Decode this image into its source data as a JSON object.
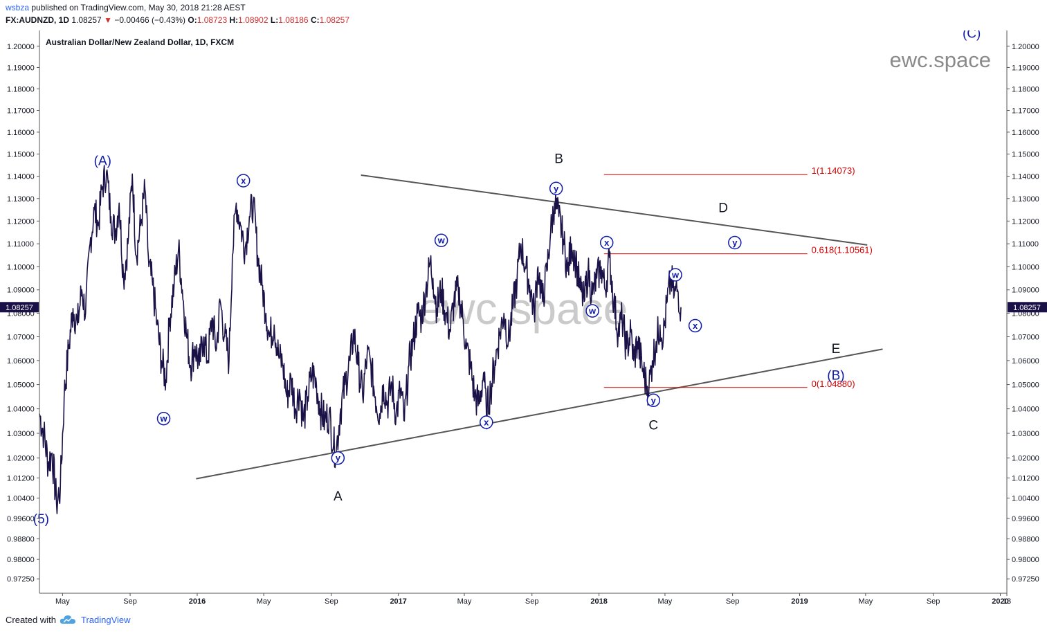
{
  "header": {
    "user": "wsbza",
    "published": "published on TradingView.com, May 30, 2018 21:28 AEST",
    "symbol": "FX:AUDNZD, 1D",
    "last": "1.08257",
    "change": "−0.00466 (−0.43%)",
    "open_label": "O:",
    "open": "1.08723",
    "high_label": "H:",
    "high": "1.08902",
    "low_label": "L:",
    "low": "1.08186",
    "close_label": "C:",
    "close": "1.08257",
    "colors": {
      "down": "#d32f2f",
      "user": "#2962ff"
    }
  },
  "footer": {
    "created_with": "Created with",
    "brand": "TradingView"
  },
  "watermark": {
    "corner": "ewc.space",
    "center": "ewc.space"
  },
  "chart_data": {
    "type": "line",
    "title": "Australian Dollar/New Zealand Dollar, 1D, FXCM",
    "xlabel": "",
    "ylabel": "",
    "series_color": "#1a1147",
    "y_scale": "log",
    "ylim": [
      0.967,
      1.2075
    ],
    "xlim": [
      "2015-03-20",
      "2020-01-13"
    ],
    "last_price": "1.08257",
    "y_ticks": [
      "1.20000",
      "1.19000",
      "1.18000",
      "1.17000",
      "1.16000",
      "1.15000",
      "1.14000",
      "1.13000",
      "1.12000",
      "1.11000",
      "1.10000",
      "1.09000",
      "1.08000",
      "1.07000",
      "1.06000",
      "1.05000",
      "1.04000",
      "1.03000",
      "1.02000",
      "1.01200",
      "1.00400",
      "0.99600",
      "0.98800",
      "0.98000",
      "0.97250"
    ],
    "x_ticks": [
      {
        "date": "2015-05-01",
        "label": "May"
      },
      {
        "date": "2015-09-01",
        "label": "Sep"
      },
      {
        "date": "2016-01-01",
        "label": "2016",
        "bold": true
      },
      {
        "date": "2016-05-01",
        "label": "May"
      },
      {
        "date": "2016-09-01",
        "label": "Sep"
      },
      {
        "date": "2017-01-01",
        "label": "2017",
        "bold": true
      },
      {
        "date": "2017-05-01",
        "label": "May"
      },
      {
        "date": "2017-09-01",
        "label": "Sep"
      },
      {
        "date": "2018-01-01",
        "label": "2018",
        "bold": true
      },
      {
        "date": "2018-05-01",
        "label": "May"
      },
      {
        "date": "2018-09-01",
        "label": "Sep"
      },
      {
        "date": "2019-01-01",
        "label": "2019",
        "bold": true
      },
      {
        "date": "2019-05-01",
        "label": "May"
      },
      {
        "date": "2019-09-01",
        "label": "Sep"
      },
      {
        "date": "2020-01-01",
        "label": "2020",
        "bold": true
      },
      {
        "date": "2020-01-13",
        "label": "13"
      }
    ],
    "price_path": [
      [
        "2015-03-20",
        1.038
      ],
      [
        "2015-03-28",
        1.03
      ],
      [
        "2015-04-05",
        1.018
      ],
      [
        "2015-04-12",
        1.022
      ],
      [
        "2015-04-20",
        1.002
      ],
      [
        "2015-04-27",
        1.008
      ],
      [
        "2015-05-04",
        1.045
      ],
      [
        "2015-05-12",
        1.065
      ],
      [
        "2015-05-20",
        1.082
      ],
      [
        "2015-05-28",
        1.075
      ],
      [
        "2015-06-05",
        1.09
      ],
      [
        "2015-06-12",
        1.08
      ],
      [
        "2015-06-20",
        1.11
      ],
      [
        "2015-06-28",
        1.125
      ],
      [
        "2015-07-05",
        1.118
      ],
      [
        "2015-07-12",
        1.135
      ],
      [
        "2015-07-20",
        1.142
      ],
      [
        "2015-07-28",
        1.122
      ],
      [
        "2015-08-05",
        1.115
      ],
      [
        "2015-08-12",
        1.128
      ],
      [
        "2015-08-20",
        1.095
      ],
      [
        "2015-08-28",
        1.11
      ],
      [
        "2015-09-05",
        1.141
      ],
      [
        "2015-09-12",
        1.105
      ],
      [
        "2015-09-20",
        1.118
      ],
      [
        "2015-09-28",
        1.134
      ],
      [
        "2015-10-05",
        1.1
      ],
      [
        "2015-10-12",
        1.092
      ],
      [
        "2015-10-20",
        1.075
      ],
      [
        "2015-10-28",
        1.06
      ],
      [
        "2015-11-05",
        1.052
      ],
      [
        "2015-11-12",
        1.078
      ],
      [
        "2015-11-20",
        1.092
      ],
      [
        "2015-11-28",
        1.108
      ],
      [
        "2015-12-05",
        1.09
      ],
      [
        "2015-12-12",
        1.072
      ],
      [
        "2015-12-20",
        1.058
      ],
      [
        "2015-12-28",
        1.066
      ],
      [
        "2016-01-05",
        1.058
      ],
      [
        "2016-01-12",
        1.07
      ],
      [
        "2016-01-20",
        1.06
      ],
      [
        "2016-01-28",
        1.078
      ],
      [
        "2016-02-05",
        1.065
      ],
      [
        "2016-02-12",
        1.085
      ],
      [
        "2016-02-20",
        1.07
      ],
      [
        "2016-02-28",
        1.06
      ],
      [
        "2016-03-05",
        1.105
      ],
      [
        "2016-03-12",
        1.128
      ],
      [
        "2016-03-20",
        1.118
      ],
      [
        "2016-03-28",
        1.108
      ],
      [
        "2016-04-05",
        1.122
      ],
      [
        "2016-04-12",
        1.128
      ],
      [
        "2016-04-20",
        1.105
      ],
      [
        "2016-04-28",
        1.092
      ],
      [
        "2016-05-05",
        1.08
      ],
      [
        "2016-05-12",
        1.07
      ],
      [
        "2016-05-20",
        1.075
      ],
      [
        "2016-05-28",
        1.062
      ],
      [
        "2016-06-05",
        1.058
      ],
      [
        "2016-06-12",
        1.045
      ],
      [
        "2016-06-20",
        1.052
      ],
      [
        "2016-06-28",
        1.04
      ],
      [
        "2016-07-05",
        1.048
      ],
      [
        "2016-07-12",
        1.035
      ],
      [
        "2016-07-20",
        1.045
      ],
      [
        "2016-07-28",
        1.055
      ],
      [
        "2016-08-05",
        1.05
      ],
      [
        "2016-08-12",
        1.04
      ],
      [
        "2016-08-20",
        1.035
      ],
      [
        "2016-08-28",
        1.038
      ],
      [
        "2016-09-05",
        1.025
      ],
      [
        "2016-09-10",
        1.023
      ],
      [
        "2016-09-18",
        1.04
      ],
      [
        "2016-09-26",
        1.05
      ],
      [
        "2016-10-05",
        1.06
      ],
      [
        "2016-10-12",
        1.072
      ],
      [
        "2016-10-20",
        1.058
      ],
      [
        "2016-10-28",
        1.045
      ],
      [
        "2016-11-05",
        1.062
      ],
      [
        "2016-11-12",
        1.058
      ],
      [
        "2016-11-20",
        1.045
      ],
      [
        "2016-11-28",
        1.038
      ],
      [
        "2016-12-05",
        1.05
      ],
      [
        "2016-12-12",
        1.042
      ],
      [
        "2016-12-20",
        1.05
      ],
      [
        "2016-12-28",
        1.038
      ],
      [
        "2017-01-05",
        1.048
      ],
      [
        "2017-01-12",
        1.035
      ],
      [
        "2017-01-20",
        1.058
      ],
      [
        "2017-01-28",
        1.068
      ],
      [
        "2017-02-05",
        1.08
      ],
      [
        "2017-02-12",
        1.078
      ],
      [
        "2017-02-20",
        1.09
      ],
      [
        "2017-02-28",
        1.102
      ],
      [
        "2017-03-05",
        1.095
      ],
      [
        "2017-03-12",
        1.082
      ],
      [
        "2017-03-20",
        1.09
      ],
      [
        "2017-03-28",
        1.08
      ],
      [
        "2017-04-05",
        1.072
      ],
      [
        "2017-04-12",
        1.085
      ],
      [
        "2017-04-20",
        1.09
      ],
      [
        "2017-04-28",
        1.078
      ],
      [
        "2017-05-05",
        1.065
      ],
      [
        "2017-05-12",
        1.058
      ],
      [
        "2017-05-20",
        1.045
      ],
      [
        "2017-05-28",
        1.042
      ],
      [
        "2017-06-05",
        1.055
      ],
      [
        "2017-06-10",
        1.038
      ],
      [
        "2017-06-18",
        1.048
      ],
      [
        "2017-06-26",
        1.06
      ],
      [
        "2017-07-05",
        1.072
      ],
      [
        "2017-07-12",
        1.08
      ],
      [
        "2017-07-20",
        1.068
      ],
      [
        "2017-07-28",
        1.082
      ],
      [
        "2017-08-05",
        1.095
      ],
      [
        "2017-08-12",
        1.11
      ],
      [
        "2017-08-20",
        1.1
      ],
      [
        "2017-08-28",
        1.092
      ],
      [
        "2017-09-05",
        1.08
      ],
      [
        "2017-09-12",
        1.1
      ],
      [
        "2017-09-20",
        1.085
      ],
      [
        "2017-09-28",
        1.098
      ],
      [
        "2017-10-05",
        1.115
      ],
      [
        "2017-10-12",
        1.128
      ],
      [
        "2017-10-20",
        1.122
      ],
      [
        "2017-10-28",
        1.112
      ],
      [
        "2017-11-05",
        1.098
      ],
      [
        "2017-11-12",
        1.11
      ],
      [
        "2017-11-20",
        1.102
      ],
      [
        "2017-11-28",
        1.09
      ],
      [
        "2017-12-05",
        1.085
      ],
      [
        "2017-12-12",
        1.098
      ],
      [
        "2017-12-20",
        1.088
      ],
      [
        "2017-12-28",
        1.095
      ],
      [
        "2018-01-05",
        1.1
      ],
      [
        "2018-01-12",
        1.09
      ],
      [
        "2018-01-20",
        1.104
      ],
      [
        "2018-01-28",
        1.085
      ],
      [
        "2018-02-05",
        1.072
      ],
      [
        "2018-02-12",
        1.078
      ],
      [
        "2018-02-20",
        1.065
      ],
      [
        "2018-02-28",
        1.072
      ],
      [
        "2018-03-05",
        1.06
      ],
      [
        "2018-03-12",
        1.068
      ],
      [
        "2018-03-20",
        1.058
      ],
      [
        "2018-03-28",
        1.05
      ],
      [
        "2018-04-02",
        1.049
      ],
      [
        "2018-04-08",
        1.06
      ],
      [
        "2018-04-15",
        1.068
      ],
      [
        "2018-04-22",
        1.075
      ],
      [
        "2018-04-28",
        1.07
      ],
      [
        "2018-05-05",
        1.085
      ],
      [
        "2018-05-12",
        1.095
      ],
      [
        "2018-05-18",
        1.088
      ],
      [
        "2018-05-24",
        1.09
      ],
      [
        "2018-05-30",
        1.0826
      ]
    ],
    "trendlines": [
      {
        "name": "upper-trendline",
        "from": [
          "2016-10-25",
          1.1405
        ],
        "to": [
          "2019-05-04",
          1.1095
        ]
      },
      {
        "name": "lower-trendline",
        "from": [
          "2015-12-30",
          1.0117
        ],
        "to": [
          "2019-06-01",
          1.0648
        ]
      }
    ],
    "fib_levels": [
      {
        "label": "1(1.14073)",
        "value": 1.14073
      },
      {
        "label": "0.618(1.10561)",
        "value": 1.10561
      },
      {
        "label": "0(1.04880)",
        "value": 1.0488
      }
    ],
    "fib_range": [
      "2018-01-10",
      "2019-01-15"
    ],
    "wave_labels": [
      {
        "text": "(5)",
        "date": "2015-03-23",
        "price": 0.994,
        "style": "blue"
      },
      {
        "text": "(A)",
        "date": "2015-07-13",
        "price": 1.145,
        "style": "blue"
      },
      {
        "text": "(B)",
        "date": "2019-03-08",
        "price": 1.052,
        "style": "blue"
      },
      {
        "text": "(C)",
        "date": "2019-11-10",
        "price": 1.204,
        "style": "blue"
      },
      {
        "text": "A",
        "date": "2016-09-13",
        "price": 1.003,
        "style": "black"
      },
      {
        "text": "B",
        "date": "2017-10-20",
        "price": 1.146,
        "style": "black"
      },
      {
        "text": "C",
        "date": "2018-04-10",
        "price": 1.0315,
        "style": "black"
      },
      {
        "text": "D",
        "date": "2018-08-15",
        "price": 1.124,
        "style": "black"
      },
      {
        "text": "E",
        "date": "2019-03-08",
        "price": 1.0632,
        "style": "black"
      }
    ],
    "sub_waves": [
      {
        "text": "x",
        "date": "2016-03-25",
        "price": 1.138
      },
      {
        "text": "w",
        "date": "2015-11-01",
        "price": 1.036
      },
      {
        "text": "y",
        "date": "2016-09-13",
        "price": 1.02
      },
      {
        "text": "w",
        "date": "2017-03-20",
        "price": 1.1115
      },
      {
        "text": "x",
        "date": "2017-06-10",
        "price": 1.0345
      },
      {
        "text": "y",
        "date": "2017-10-15",
        "price": 1.1345
      },
      {
        "text": "w",
        "date": "2017-12-20",
        "price": 1.081
      },
      {
        "text": "x",
        "date": "2018-01-15",
        "price": 1.1105
      },
      {
        "text": "y",
        "date": "2018-04-10",
        "price": 1.0435
      },
      {
        "text": "w",
        "date": "2018-05-20",
        "price": 1.0965
      },
      {
        "text": "x",
        "date": "2018-06-25",
        "price": 1.0747
      },
      {
        "text": "y",
        "date": "2018-09-05",
        "price": 1.1105
      }
    ]
  }
}
